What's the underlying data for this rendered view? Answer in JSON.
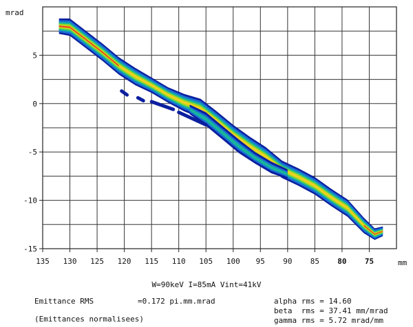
{
  "chart_data": {
    "type": "heatmap",
    "ylabel": "mrad",
    "xlabel": "mm",
    "xlim": [
      135,
      70
    ],
    "ylim": [
      -15,
      10
    ],
    "x_ticks": [
      135,
      130,
      125,
      120,
      115,
      110,
      105,
      100,
      95,
      90,
      85,
      80,
      75
    ],
    "x_tick_labels": [
      "135",
      "130",
      "125",
      "120",
      "115",
      "110",
      "105",
      "100",
      "95",
      "90",
      "85",
      "80",
      "75"
    ],
    "y_ticks": [
      5,
      0,
      -5,
      -10,
      -15
    ],
    "y_tick_labels": [
      "5",
      "0",
      "-5",
      "-10",
      "-15"
    ],
    "grid": true,
    "main_band": [
      {
        "x": 132,
        "y": 8.0,
        "w": 0.8
      },
      {
        "x": 130,
        "y": 7.9,
        "w": 0.9
      },
      {
        "x": 127,
        "y": 6.6,
        "w": 0.9
      },
      {
        "x": 124,
        "y": 5.3,
        "w": 0.9
      },
      {
        "x": 121,
        "y": 3.9,
        "w": 0.9
      },
      {
        "x": 118,
        "y": 2.8,
        "w": 0.9
      },
      {
        "x": 115,
        "y": 1.9,
        "w": 0.8
      },
      {
        "x": 112,
        "y": 0.9,
        "w": 0.8
      },
      {
        "x": 109,
        "y": 0.1,
        "w": 0.9
      },
      {
        "x": 106,
        "y": -0.5,
        "w": 1.0
      },
      {
        "x": 103,
        "y": -1.8,
        "w": 1.0
      },
      {
        "x": 100,
        "y": -3.2,
        "w": 1.0
      },
      {
        "x": 97,
        "y": -4.4,
        "w": 1.0
      },
      {
        "x": 94,
        "y": -5.5,
        "w": 1.0
      },
      {
        "x": 91,
        "y": -6.8,
        "w": 0.9
      },
      {
        "x": 88,
        "y": -7.6,
        "w": 0.9
      },
      {
        "x": 85,
        "y": -8.5,
        "w": 0.9
      },
      {
        "x": 82,
        "y": -9.7,
        "w": 0.9
      },
      {
        "x": 79,
        "y": -10.8,
        "w": 0.9
      },
      {
        "x": 76,
        "y": -12.6,
        "w": 0.8
      },
      {
        "x": 74,
        "y": -13.5,
        "w": 0.6
      },
      {
        "x": 72.5,
        "y": -13.2,
        "w": 0.5
      }
    ],
    "secondary_band": [
      {
        "x": 108,
        "y": -0.6,
        "w": 0.5
      },
      {
        "x": 105,
        "y": -1.6,
        "w": 0.7
      },
      {
        "x": 102,
        "y": -3.0,
        "w": 0.7
      },
      {
        "x": 99,
        "y": -4.4,
        "w": 0.7
      },
      {
        "x": 96,
        "y": -5.6,
        "w": 0.6
      },
      {
        "x": 93,
        "y": -6.6,
        "w": 0.6
      },
      {
        "x": 90,
        "y": -7.3,
        "w": 0.5
      }
    ],
    "fragments": [
      {
        "x0": 120.5,
        "y0": 1.3,
        "x1": 119.5,
        "y1": 0.9
      },
      {
        "x0": 117.5,
        "y0": 0.6,
        "x1": 116.5,
        "y1": 0.3
      },
      {
        "x0": 115,
        "y0": 0.2,
        "x1": 111,
        "y1": -0.6
      },
      {
        "x0": 110,
        "y0": -0.9,
        "x1": 105,
        "y1": -2.2
      }
    ]
  },
  "footer": {
    "conditions": "W=90keV I=85mA Vint=41kV",
    "emittance_label": "Emittance RMS",
    "emittance_value": "=0.172 pi.mm.mrad",
    "normalised": "(Emittances normalisees)",
    "alpha": "alpha rms = 14.60",
    "beta": "beta  rms = 37.41 mm/mrad",
    "gamma": "gamma rms = 5.72 mrad/mm"
  }
}
